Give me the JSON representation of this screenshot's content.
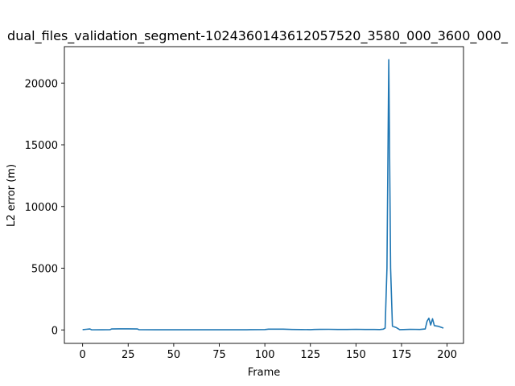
{
  "chart_data": {
    "type": "line",
    "title": "dual_files_validation_segment-10243601436120575​20_3580_000_3600_000_",
    "xlabel": "Frame",
    "ylabel": "L2 error (m)",
    "xlim": [
      -10,
      209
    ],
    "ylim": [
      -1090,
      22950
    ],
    "x_ticks": [
      0,
      25,
      50,
      75,
      100,
      125,
      150,
      175,
      200
    ],
    "y_ticks": [
      0,
      5000,
      10000,
      15000,
      20000
    ],
    "grid": false,
    "color": "#1f77b4",
    "series": [
      {
        "x": [
          0,
          2,
          4,
          5,
          10,
          15,
          16,
          20,
          25,
          30,
          31,
          40,
          50,
          60,
          70,
          80,
          90,
          92,
          100,
          102,
          105,
          110,
          115,
          120,
          125,
          127,
          130,
          135,
          140,
          145,
          150,
          155,
          160,
          163,
          165,
          166,
          167,
          168,
          169,
          170,
          172,
          174,
          176,
          180,
          185,
          188,
          189,
          190,
          191,
          192,
          193,
          195,
          198
        ],
        "y": [
          20,
          50,
          80,
          10,
          15,
          20,
          80,
          85,
          85,
          80,
          20,
          15,
          15,
          15,
          15,
          15,
          15,
          20,
          30,
          60,
          60,
          60,
          40,
          30,
          25,
          40,
          45,
          50,
          40,
          40,
          50,
          40,
          40,
          30,
          60,
          150,
          5000,
          21900,
          5000,
          300,
          200,
          20,
          30,
          50,
          40,
          80,
          700,
          950,
          400,
          900,
          350,
          300,
          150
        ]
      }
    ]
  }
}
